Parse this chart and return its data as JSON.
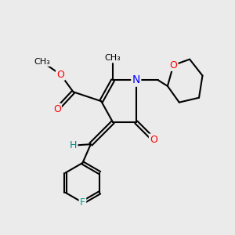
{
  "bg_color": "#ebebeb",
  "atom_colors": {
    "C": "#000000",
    "N": "#0000ff",
    "O": "#ff0000",
    "F": "#00aa88",
    "H": "#008888"
  },
  "bond_color": "#000000",
  "bond_width": 1.5
}
